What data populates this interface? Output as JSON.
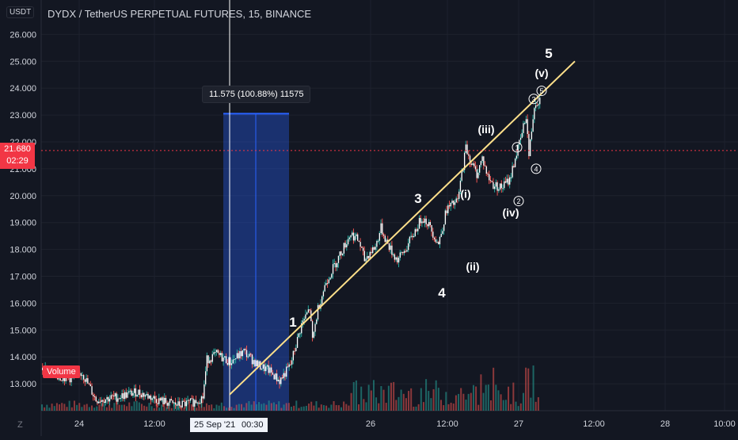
{
  "header": {
    "title": "DYDX / TetherUS PERPETUAL FUTURES, 15, BINANCE",
    "currency": "USDT"
  },
  "price_tag": {
    "price": "21.680",
    "countdown": "02:29"
  },
  "measure_label": "11.575 (100.88%) 11575",
  "volume_label": "Volume",
  "crosshair": {
    "date": "25 Sep '21",
    "time": "00:30"
  },
  "zoom_button": "Z",
  "colors": {
    "background": "#131722",
    "grid": "#1e222d",
    "up": "#26a69a",
    "down": "#ef5350",
    "trendline": "#ffe08a",
    "measure": "#2962ff",
    "price_line": "#f23645",
    "label": "#ffffff"
  },
  "chart_data": {
    "type": "candlestick",
    "y_ticks": [
      "13.000",
      "14.000",
      "15.000",
      "16.000",
      "17.000",
      "18.000",
      "19.000",
      "20.000",
      "21.000",
      "22.000",
      "23.000",
      "24.000",
      "25.000",
      "26.000"
    ],
    "ylim": [
      12.0,
      27.0
    ],
    "x_ticks": [
      "24",
      "12:00",
      "26",
      "12:00",
      "27",
      "12:00",
      "28",
      "10:00"
    ],
    "last_price": 21.68,
    "price_path": [
      [
        0,
        13.6
      ],
      [
        10,
        13.3
      ],
      [
        22,
        13.2
      ],
      [
        30,
        13.4
      ],
      [
        40,
        12.4
      ],
      [
        55,
        12.5
      ],
      [
        70,
        12.7
      ],
      [
        85,
        12.4
      ],
      [
        100,
        12.2
      ],
      [
        110,
        12.3
      ],
      [
        118,
        12.5
      ],
      [
        121,
        13.9
      ],
      [
        128,
        14.1
      ],
      [
        138,
        13.8
      ],
      [
        148,
        14.2
      ],
      [
        158,
        13.7
      ],
      [
        166,
        13.5
      ],
      [
        174,
        13.1
      ],
      [
        182,
        13.7
      ],
      [
        190,
        15.2
      ],
      [
        196,
        15.8
      ],
      [
        198,
        14.6
      ],
      [
        202,
        15.8
      ],
      [
        208,
        16.8
      ],
      [
        214,
        17.4
      ],
      [
        220,
        18.0
      ],
      [
        226,
        18.6
      ],
      [
        232,
        18.3
      ],
      [
        236,
        17.6
      ],
      [
        240,
        17.9
      ],
      [
        244,
        18.1
      ],
      [
        248,
        18.8
      ],
      [
        252,
        18.3
      ],
      [
        256,
        17.9
      ],
      [
        260,
        17.6
      ],
      [
        266,
        18.0
      ],
      [
        272,
        18.6
      ],
      [
        278,
        19.2
      ],
      [
        282,
        19.0
      ],
      [
        286,
        18.6
      ],
      [
        290,
        18.2
      ],
      [
        296,
        19.5
      ],
      [
        304,
        19.8
      ],
      [
        310,
        21.8
      ],
      [
        314,
        21.2
      ],
      [
        318,
        20.8
      ],
      [
        322,
        21.4
      ],
      [
        326,
        20.7
      ],
      [
        330,
        20.4
      ],
      [
        336,
        20.3
      ],
      [
        342,
        20.6
      ],
      [
        346,
        21.4
      ],
      [
        350,
        22.1
      ],
      [
        354,
        23.0
      ],
      [
        356,
        21.5
      ],
      [
        360,
        23.4
      ],
      [
        364,
        23.6
      ]
    ],
    "volume_bars": 200,
    "trendline": [
      [
        2.0,
        12.6
      ],
      [
        24.0,
        24.9
      ]
    ],
    "measure_range": {
      "y_from": 12.0,
      "y_to": 23.05,
      "x_from": 235,
      "x_to": 290
    },
    "wave_labels": [
      {
        "text": "1",
        "y": 15.3
      },
      {
        "text": "3",
        "y": 19.9
      },
      {
        "text": "4",
        "y": 16.4
      },
      {
        "text": "5",
        "y": 25.3
      },
      {
        "text": "(i)",
        "y": 20.1
      },
      {
        "text": "(ii)",
        "y": 17.4
      },
      {
        "text": "(iii)",
        "y": 22.5
      },
      {
        "text": "(iv)",
        "y": 19.4
      },
      {
        "text": "(v)",
        "y": 24.6
      },
      {
        "text": "1",
        "y": 21.8,
        "circled": true
      },
      {
        "text": "2",
        "y": 19.8,
        "circled": true
      },
      {
        "text": "3",
        "y": 23.6,
        "circled": true
      },
      {
        "text": "4",
        "y": 21.0,
        "circled": true
      },
      {
        "text": "5",
        "y": 23.9,
        "circled": true
      }
    ]
  }
}
